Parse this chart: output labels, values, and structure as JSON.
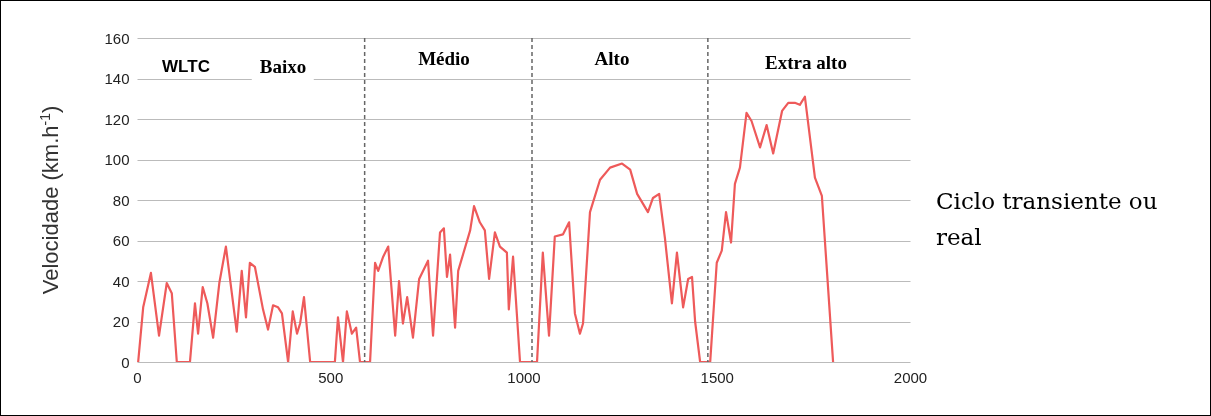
{
  "chart_data": {
    "type": "line",
    "ylabel": "Velocidade (km.h$^{-1}$)",
    "xlim": [
      0,
      2000
    ],
    "xticks": [
      0,
      500,
      1000,
      1500,
      2000
    ],
    "ylim": [
      0,
      160
    ],
    "yticks": [
      0,
      20,
      40,
      60,
      80,
      100,
      120,
      140,
      160
    ],
    "grid": "y",
    "line_style": "solid",
    "series": [
      {
        "color": "#ee5a5a",
        "x": [
          3,
          16,
          36,
          57,
          77,
          90,
          103,
          137,
          150,
          158,
          170,
          182,
          197,
          213,
          230,
          258,
          271,
          282,
          292,
          305,
          326,
          339,
          352,
          365,
          375,
          391,
          403,
          414,
          422,
          432,
          448,
          512,
          520,
          533,
          543,
          556,
          567,
          577,
          603,
          616,
          624,
          637,
          650,
          668,
          678,
          688,
          699,
          714,
          730,
          753,
          766,
          784,
          794,
          802,
          810,
          823,
          831,
          862,
          872,
          887,
          900,
          911,
          926,
          939,
          957,
          962,
          973,
          991,
          1022,
          1035,
          1050,
          1066,
          1081,
          1102,
          1118,
          1133,
          1146,
          1154,
          1172,
          1198,
          1224,
          1255,
          1276,
          1294,
          1322,
          1335,
          1351,
          1366,
          1384,
          1397,
          1413,
          1426,
          1436,
          1444,
          1457,
          1477,
          1483,
          1500,
          1513,
          1524,
          1537,
          1547,
          1560,
          1577,
          1590,
          1612,
          1629,
          1646,
          1669,
          1685,
          1702,
          1715,
          1728,
          1754,
          1772,
          1801
        ],
        "values": [
          0,
          27,
          44,
          13,
          39,
          34,
          0,
          0,
          29,
          14,
          37,
          29,
          12,
          39,
          57,
          15,
          45,
          22,
          49,
          47,
          26,
          16,
          28,
          27,
          24,
          0,
          25,
          14,
          19,
          32,
          0,
          0,
          22,
          0,
          25,
          14,
          17,
          0,
          0,
          49,
          45,
          52,
          57,
          13,
          40,
          19,
          32,
          12,
          41,
          50,
          13,
          64,
          66,
          42,
          53,
          17,
          45,
          65,
          77,
          69,
          65,
          41,
          64,
          57,
          54,
          26,
          52,
          0,
          0,
          0,
          54,
          13,
          62,
          63,
          69,
          24,
          14,
          19,
          74,
          90,
          96,
          98,
          95,
          83,
          74,
          81,
          83,
          61,
          29,
          54,
          27,
          41,
          42,
          20,
          0,
          0,
          0,
          49,
          55,
          74,
          59,
          88,
          96,
          123,
          119,
          106,
          117,
          103,
          124,
          128,
          128,
          127,
          131,
          91,
          82,
          0
        ]
      }
    ],
    "ref_lines": [
      {
        "axis": "x",
        "value": 589,
        "color": "#666666",
        "line_style": "dashed"
      },
      {
        "axis": "x",
        "value": 1022,
        "color": "#666666",
        "line_style": "dashed"
      },
      {
        "axis": "x",
        "value": 1477,
        "color": "#666666",
        "line_style": "dashed"
      }
    ],
    "annotations": [
      "WLTC",
      "Baixo",
      "Médio",
      "Alto",
      "Extra alto",
      "Ciclo transiente ou real"
    ]
  }
}
